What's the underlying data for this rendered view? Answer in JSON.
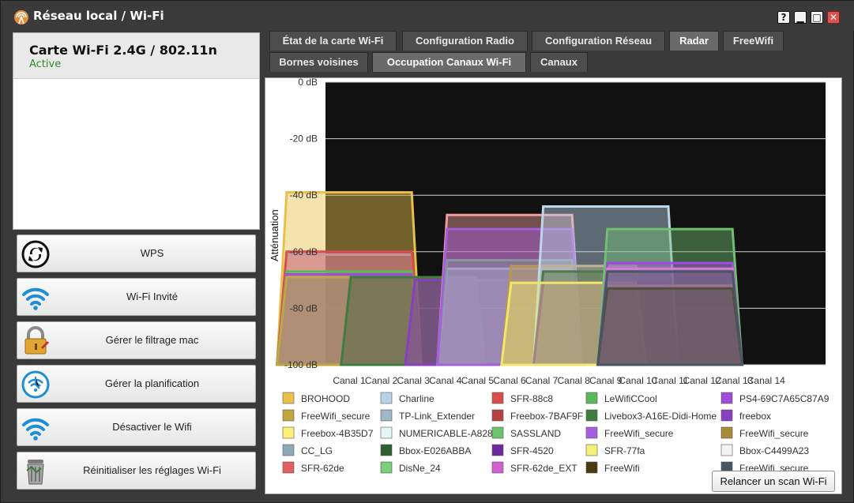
{
  "window": {
    "title": "Réseau local / Wi-Fi",
    "btn_help": "?",
    "btn_min": "▁",
    "btn_max": "□",
    "btn_close": "✕"
  },
  "card": {
    "name": "Carte Wi-Fi 2.4G / 802.11n",
    "status": "Active"
  },
  "actions": [
    {
      "label": "WPS",
      "icon": "wps-icon"
    },
    {
      "label": "Wi-Fi Invité",
      "icon": "wifi-icon"
    },
    {
      "label": "Gérer le filtrage mac",
      "icon": "padlock-icon"
    },
    {
      "label": "Gérer la planification",
      "icon": "wifi-clock-icon"
    },
    {
      "label": "Désactiver le Wifi",
      "icon": "wifi-icon"
    },
    {
      "label": "Réinitialiser les réglages Wi-Fi",
      "icon": "trash-icon"
    }
  ],
  "tabs": [
    {
      "label": "État de la carte Wi-Fi",
      "active": false
    },
    {
      "label": "Configuration Radio",
      "active": false
    },
    {
      "label": "Configuration Réseau",
      "active": false
    },
    {
      "label": "Radar",
      "active": true
    },
    {
      "label": "FreeWifi",
      "active": false
    },
    {
      "label": "Bornes voisines",
      "active": false
    },
    {
      "label": "Occupation Canaux Wi-Fi",
      "active": true
    },
    {
      "label": "Canaux",
      "active": false
    }
  ],
  "scan_button": "Relancer un scan Wi-Fi",
  "colors": {
    "plot_bg": "#111111",
    "active_status": "#2e8b2e"
  },
  "chart_data": {
    "type": "area",
    "ylabel": "Atténuation",
    "ylim": [
      -100,
      0
    ],
    "yticks": [
      "0 dB",
      "-20 dB",
      "-40 dB",
      "-60 dB",
      "-80 dB",
      "-100 dB"
    ],
    "x_categories": [
      "Canal 1",
      "Canal 2",
      "Canal 3",
      "Canal 4",
      "Canal 5",
      "Canal 6",
      "Canal 7",
      "Canal 8",
      "Canal 9",
      "Canal 10",
      "Canal 11",
      "Canal 12",
      "Canal 13",
      "Canal 14"
    ],
    "series": [
      {
        "name": "BROHOOD",
        "channel": 1,
        "db": -39,
        "color": "#e8c04a"
      },
      {
        "name": "Charline",
        "channel": 1,
        "db": -61,
        "color": "#b9d3e6"
      },
      {
        "name": "SFR-88c8",
        "channel": 1,
        "db": -60,
        "color": "#d94c4c"
      },
      {
        "name": "LeWifiCCool",
        "channel": 1,
        "db": -67,
        "color": "#5bb85b"
      },
      {
        "name": "PS4-69C7A65C87A9",
        "channel": 1,
        "db": -68,
        "color": "#a04cd9"
      },
      {
        "name": "FreeWifi_secure",
        "channel": 1,
        "db": -69,
        "color": "#c2a640"
      },
      {
        "name": "TP-Link_Extender",
        "channel": 3,
        "db": -69,
        "color": "#9fb8c7"
      },
      {
        "name": "Freebox-7BAF9F",
        "channel": 3,
        "db": -69,
        "color": "#b84040"
      },
      {
        "name": "Livebox3-A16E-Didi-Home",
        "channel": 3,
        "db": -69,
        "color": "#3e7d3e"
      },
      {
        "name": "freebox",
        "channel": 5,
        "db": -70,
        "color": "#8a3fbf"
      },
      {
        "name": "Freebox-4B35D7",
        "channel": 6,
        "db": -47,
        "color": "#ee9c9c"
      },
      {
        "name": "NUMERICABLE-A828",
        "channel": 6,
        "db": -66,
        "color": "#d8eeee"
      },
      {
        "name": "SASSLAND",
        "channel": 6,
        "db": -63,
        "color": "#6cc36c"
      },
      {
        "name": "FreeWifi_secure",
        "channel": 6,
        "db": -52,
        "color": "#a65ee0"
      },
      {
        "name": "FreeWifi_secure",
        "channel": 8,
        "db": -65,
        "color": "#b8974a"
      },
      {
        "name": "CC_LG",
        "channel": 9,
        "db": -44,
        "color": "#bcd7ea"
      },
      {
        "name": "Bbox-E026ABBA",
        "channel": 9,
        "db": -67,
        "color": "#4d7a4d"
      },
      {
        "name": "SFR-4520",
        "channel": 9,
        "db": -71,
        "color": "#6b2a9e"
      },
      {
        "name": "SFR-77fa",
        "channel": 8,
        "db": -71,
        "color": "#f0e86c"
      },
      {
        "name": "Bbox-C4499A23",
        "channel": 11,
        "db": -52,
        "color": "#70c070"
      },
      {
        "name": "SFR-62de",
        "channel": 11,
        "db": -64,
        "color": "#a34adf"
      },
      {
        "name": "DisNe_24",
        "channel": 11,
        "db": -72,
        "color": "#e69a9a"
      },
      {
        "name": "SFR-62de_EXT",
        "channel": 11,
        "db": -66,
        "color": "#d87ad8"
      },
      {
        "name": "FreeWifi",
        "channel": 11,
        "db": -73,
        "color": "#5a4a22"
      },
      {
        "name": "FreeWifi_secure",
        "channel": 11,
        "db": -67,
        "color": "#48565f"
      }
    ],
    "legend": [
      {
        "name": "BROHOOD",
        "color": "#e8c04a"
      },
      {
        "name": "Charline",
        "color": "#b9d3e6"
      },
      {
        "name": "SFR-88c8",
        "color": "#d94c4c"
      },
      {
        "name": "LeWifiCCool",
        "color": "#5bb85b"
      },
      {
        "name": "PS4-69C7A65C87A9",
        "color": "#a04cd9"
      },
      {
        "name": "FreeWifi_secure",
        "color": "#c2a640"
      },
      {
        "name": "TP-Link_Extender",
        "color": "#9fb8c7"
      },
      {
        "name": "Freebox-7BAF9F",
        "color": "#b84040"
      },
      {
        "name": "Livebox3-A16E-Didi-Home",
        "color": "#3e7d3e"
      },
      {
        "name": "freebox",
        "color": "#8a3fbf"
      },
      {
        "name": "Freebox-4B35D7",
        "color": "#fff07a"
      },
      {
        "name": "NUMERICABLE-A828",
        "color": "#e6f6f6"
      },
      {
        "name": "SASSLAND",
        "color": "#6cc36c"
      },
      {
        "name": "FreeWifi_secure",
        "color": "#a65ee0"
      },
      {
        "name": "FreeWifi_secure",
        "color": "#a88a3a"
      },
      {
        "name": "CC_LG",
        "color": "#8fa9b8"
      },
      {
        "name": "Bbox-E026ABBA",
        "color": "#2f5e2f"
      },
      {
        "name": "SFR-4520",
        "color": "#6b2a9e"
      },
      {
        "name": "SFR-77fa",
        "color": "#f4f07a"
      },
      {
        "name": "Bbox-C4499A23",
        "color": "#f4f4f4"
      },
      {
        "name": "SFR-62de",
        "color": "#e06060"
      },
      {
        "name": "DisNe_24",
        "color": "#7ad07a"
      },
      {
        "name": "SFR-62de_EXT",
        "color": "#d060d0"
      },
      {
        "name": "FreeWifi",
        "color": "#4a3a12"
      },
      {
        "name": "FreeWifi_secure",
        "color": "#48565f"
      }
    ],
    "grid": true,
    "legend_placement": "bottom"
  }
}
